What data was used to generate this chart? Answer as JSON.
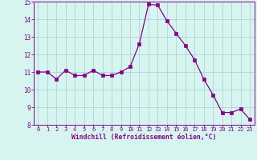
{
  "x": [
    0,
    1,
    2,
    3,
    4,
    5,
    6,
    7,
    8,
    9,
    10,
    11,
    12,
    13,
    14,
    15,
    16,
    17,
    18,
    19,
    20,
    21,
    22,
    23
  ],
  "y": [
    11.0,
    11.0,
    10.6,
    11.1,
    10.8,
    10.8,
    11.1,
    10.8,
    10.8,
    11.0,
    11.3,
    12.6,
    14.85,
    14.8,
    13.9,
    13.2,
    12.5,
    11.7,
    10.6,
    9.7,
    8.7,
    8.7,
    8.9,
    8.3
  ],
  "line_color": "#880088",
  "marker": "s",
  "marker_size": 2.2,
  "bg_color": "#d6f5f0",
  "grid_color": "#aacccc",
  "xlabel": "Windchill (Refroidissement éolien,°C)",
  "xlabel_color": "#880088",
  "tick_color": "#880088",
  "ylim": [
    8,
    15
  ],
  "xlim": [
    -0.5,
    23.5
  ],
  "yticks": [
    8,
    9,
    10,
    11,
    12,
    13,
    14,
    15
  ],
  "xticks": [
    0,
    1,
    2,
    3,
    4,
    5,
    6,
    7,
    8,
    9,
    10,
    11,
    12,
    13,
    14,
    15,
    16,
    17,
    18,
    19,
    20,
    21,
    22,
    23
  ]
}
